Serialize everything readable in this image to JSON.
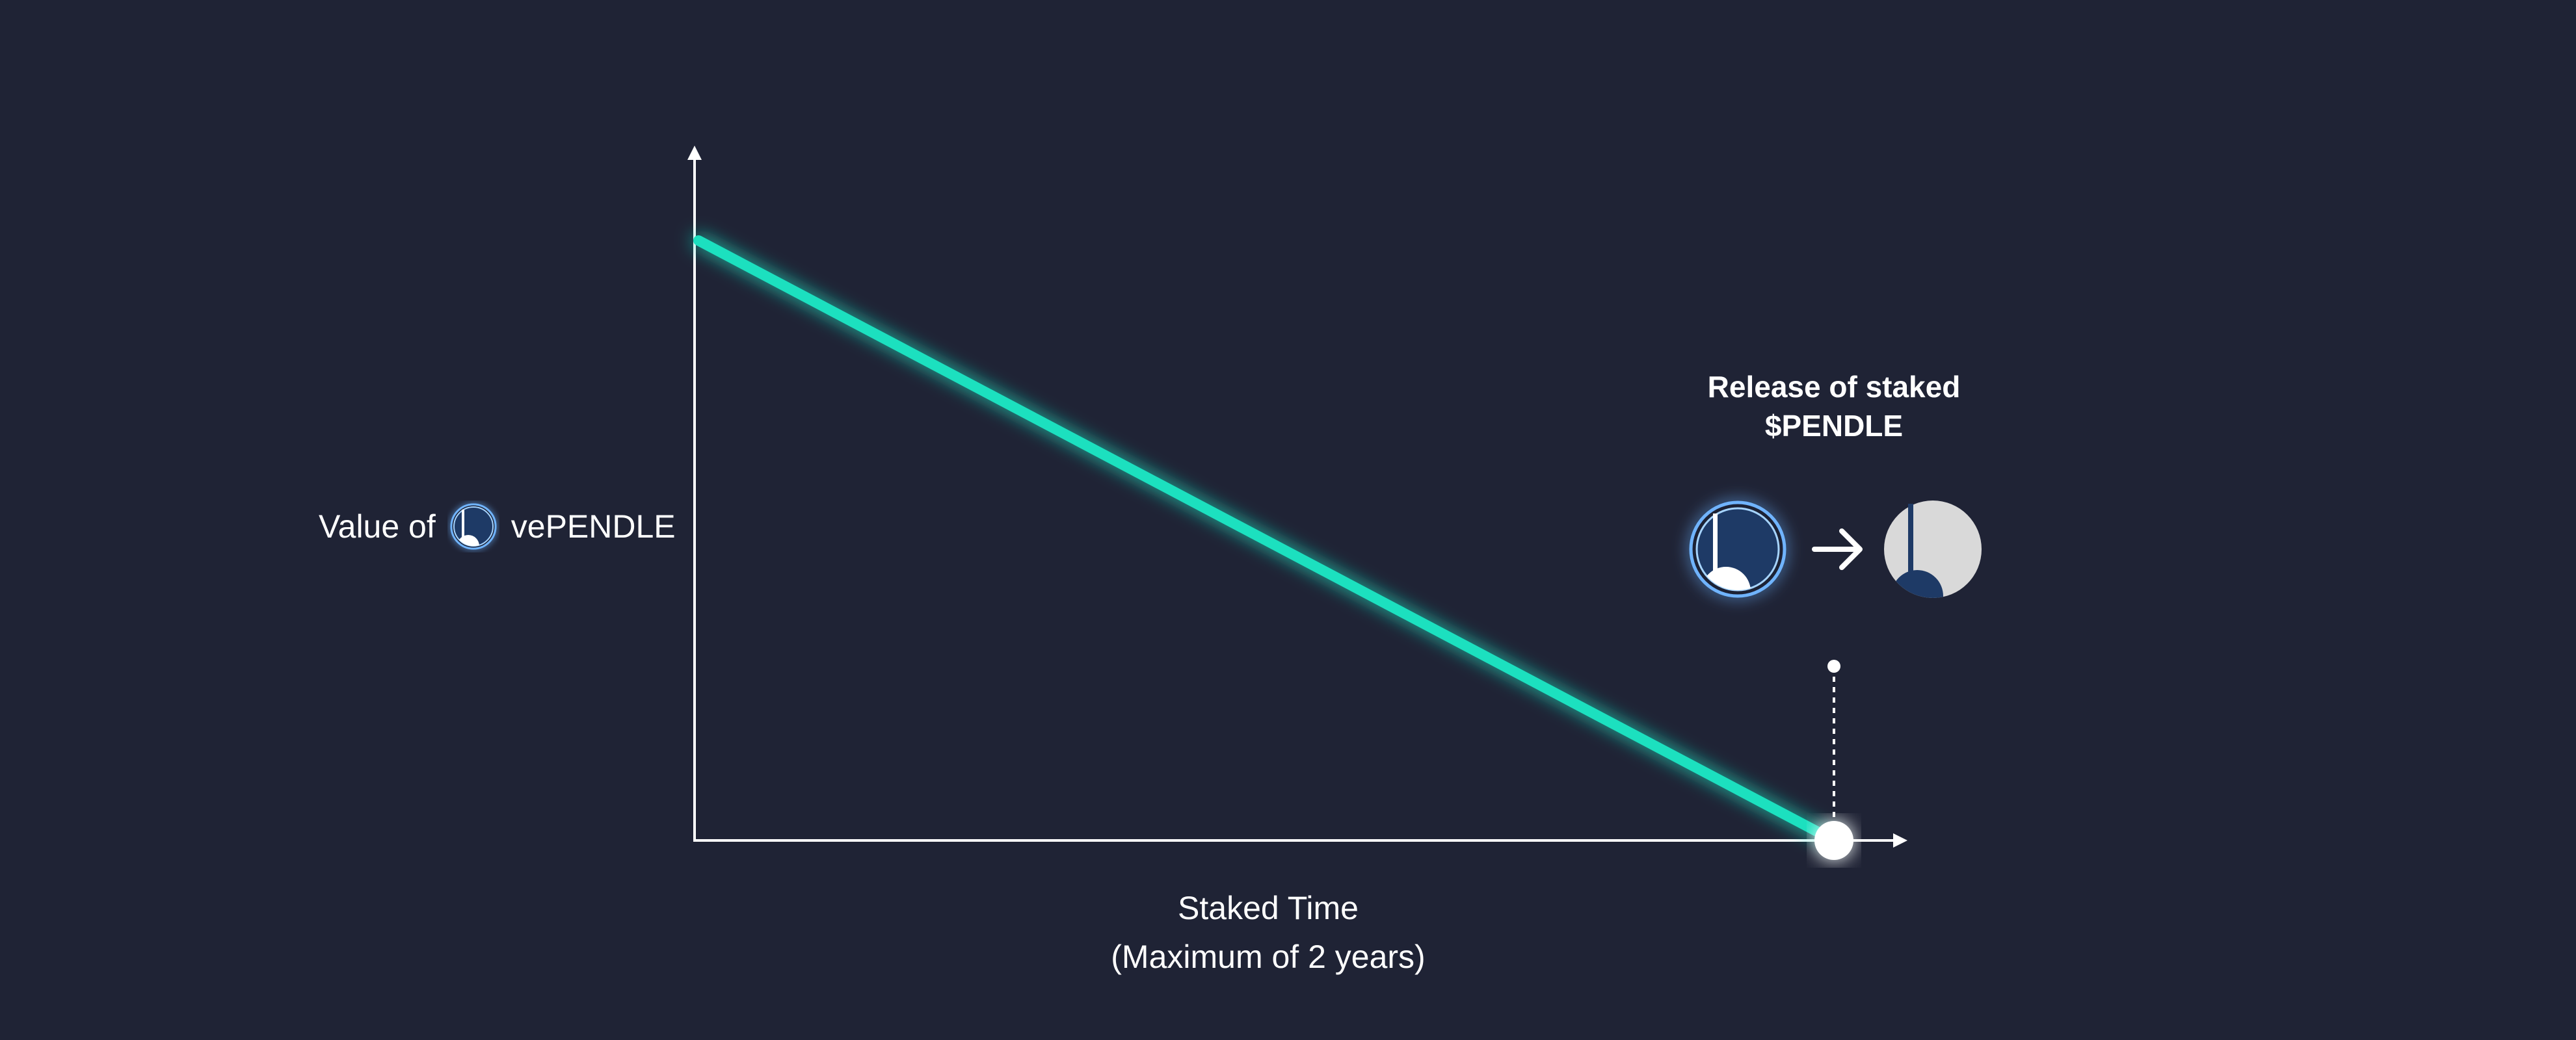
{
  "y_axis": {
    "prefix": "Value of",
    "suffix": "vePENDLE",
    "icon": "pendle-token-icon"
  },
  "x_axis": {
    "line1": "Staked Time",
    "line2": "(Maximum of 2 years)"
  },
  "release": {
    "line1": "Release of staked",
    "line2": "$PENDLE",
    "from_icon": "vependle-token-icon",
    "to_icon": "pendle-token-icon",
    "arrow_icon": "arrow-right-icon"
  },
  "colors": {
    "background": "#1f2335",
    "decay_line": "#1fe0bf",
    "axis": "#ffffff",
    "token_navy": "#1e3a66",
    "token_light": "#d9d9d9",
    "glow": "#5aa8ff"
  },
  "chart_data": {
    "type": "line",
    "series": [
      {
        "x": [
          0,
          1
        ],
        "y": [
          1,
          0
        ]
      }
    ]
  }
}
